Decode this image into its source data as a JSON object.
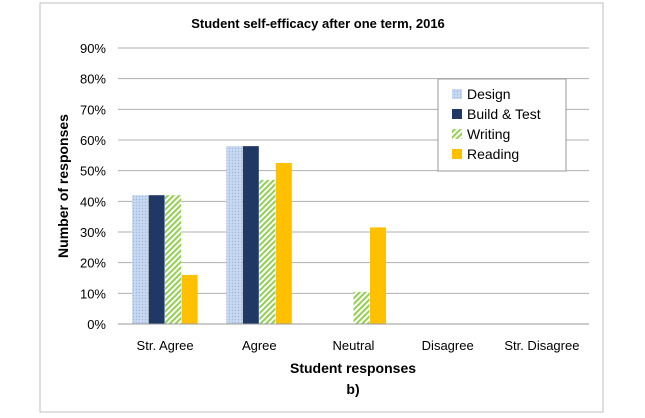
{
  "chart_data": {
    "type": "bar",
    "title": "Student self-efficacy after one term, 2016",
    "xlabel": "Student responses",
    "ylabel": "Number of responses",
    "panel_label": "b)",
    "categories": [
      "Str. Agree",
      "Agree",
      "Neutral",
      "Disagree",
      "Str. Disagree"
    ],
    "ylim": [
      0,
      0.9
    ],
    "yticks": [
      "0%",
      "10%",
      "20%",
      "30%",
      "40%",
      "50%",
      "60%",
      "70%",
      "80%",
      "90%"
    ],
    "grid": true,
    "legend_position": "top-right",
    "series": [
      {
        "name": "Design",
        "values": [
          0.42,
          0.58,
          0,
          0,
          0
        ],
        "color": "#bcd0ec",
        "pattern": "dots"
      },
      {
        "name": "Build & Test",
        "values": [
          0.42,
          0.58,
          0,
          0,
          0
        ],
        "color": "#1f3864",
        "pattern": "solid"
      },
      {
        "name": "Writing",
        "values": [
          0.42,
          0.47,
          0.105,
          0,
          0
        ],
        "color": "#92d050",
        "pattern": "diagonal-stripes"
      },
      {
        "name": "Reading",
        "values": [
          0.16,
          0.525,
          0.315,
          0,
          0
        ],
        "color": "#ffc000",
        "pattern": "solid"
      }
    ]
  }
}
